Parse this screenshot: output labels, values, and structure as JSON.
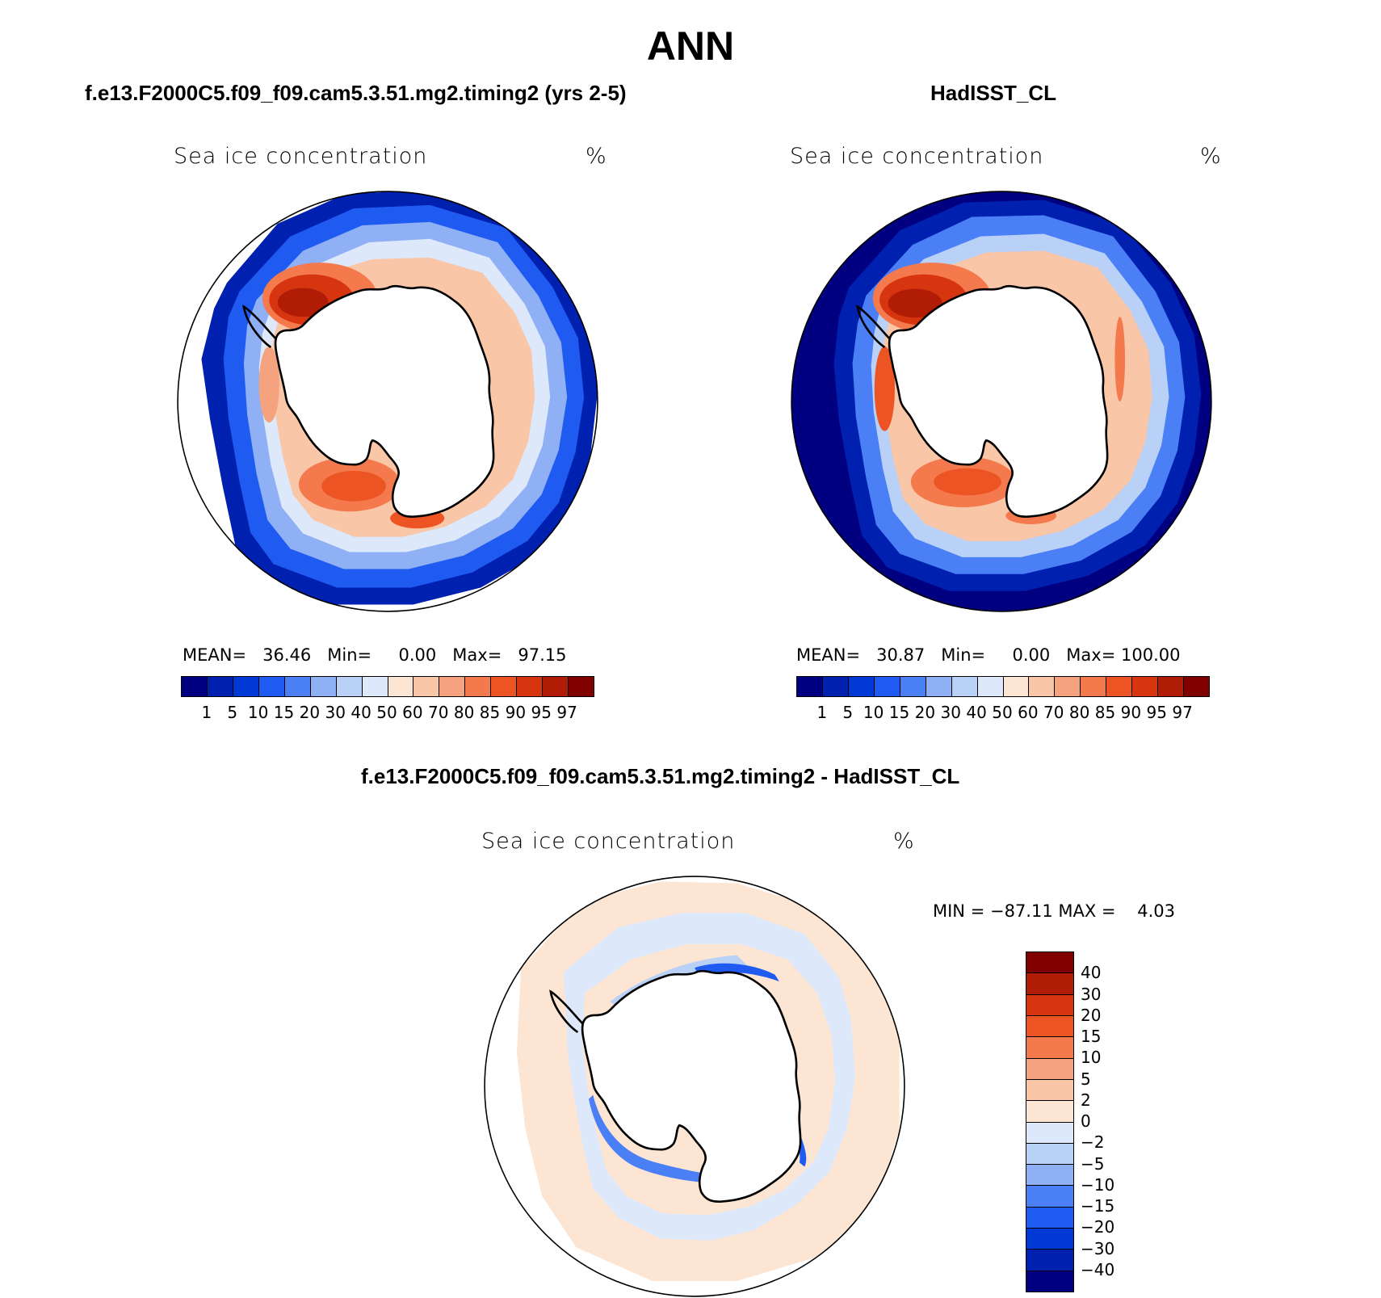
{
  "figure": {
    "title": "ANN"
  },
  "panels": {
    "model": {
      "title": "f.e13.F2000C5.f09_f09.cam5.3.51.mg2.timing2 (yrs 2-5)",
      "variable": "Sea ice concentration",
      "units": "%",
      "mean_label": "MEAN=",
      "mean": "36.46",
      "min_label": "Min=",
      "min": "0.00",
      "max_label": "Max=",
      "max": "97.15"
    },
    "obs": {
      "title": "HadISST_CL",
      "variable": "Sea ice concentration",
      "units": "%",
      "mean_label": "MEAN=",
      "mean": "30.87",
      "min_label": "Min=",
      "min": "0.00",
      "max_label": "Max=",
      "max": "100.00"
    },
    "diff": {
      "title": "f.e13.F2000C5.f09_f09.cam5.3.51.mg2.timing2 - HadISST_CL",
      "variable": "Sea ice concentration",
      "units": "%",
      "min_label": "MIN =",
      "min": "−87.11",
      "max_label": "MAX =",
      "max": "4.03"
    }
  },
  "colorbars": {
    "concentration": {
      "levels": [
        "1",
        "5",
        "10",
        "15",
        "20",
        "30",
        "40",
        "50",
        "60",
        "70",
        "80",
        "85",
        "90",
        "95",
        "97"
      ],
      "colors": [
        "#000080",
        "#0020b0",
        "#0039d6",
        "#1f5bf0",
        "#4a7ff5",
        "#8fb0f5",
        "#b9d0f7",
        "#dde9fb",
        "#fde5d3",
        "#fac6a8",
        "#f5a27e",
        "#f47a4d",
        "#ec5523",
        "#d63510",
        "#b01c05",
        "#800000"
      ]
    },
    "difference": {
      "levels": [
        "40",
        "30",
        "20",
        "15",
        "10",
        "5",
        "2",
        "0",
        "−2",
        "−5",
        "−10",
        "−15",
        "−20",
        "−30",
        "−40"
      ],
      "colors": [
        "#800000",
        "#b01c05",
        "#d63510",
        "#ec5523",
        "#f47a4d",
        "#f5a27e",
        "#fac6a8",
        "#fde5d3",
        "#dde9fb",
        "#b9d0f7",
        "#8fb0f5",
        "#4a7ff5",
        "#1f5bf0",
        "#0039d6",
        "#0020b0",
        "#000080"
      ]
    }
  }
}
